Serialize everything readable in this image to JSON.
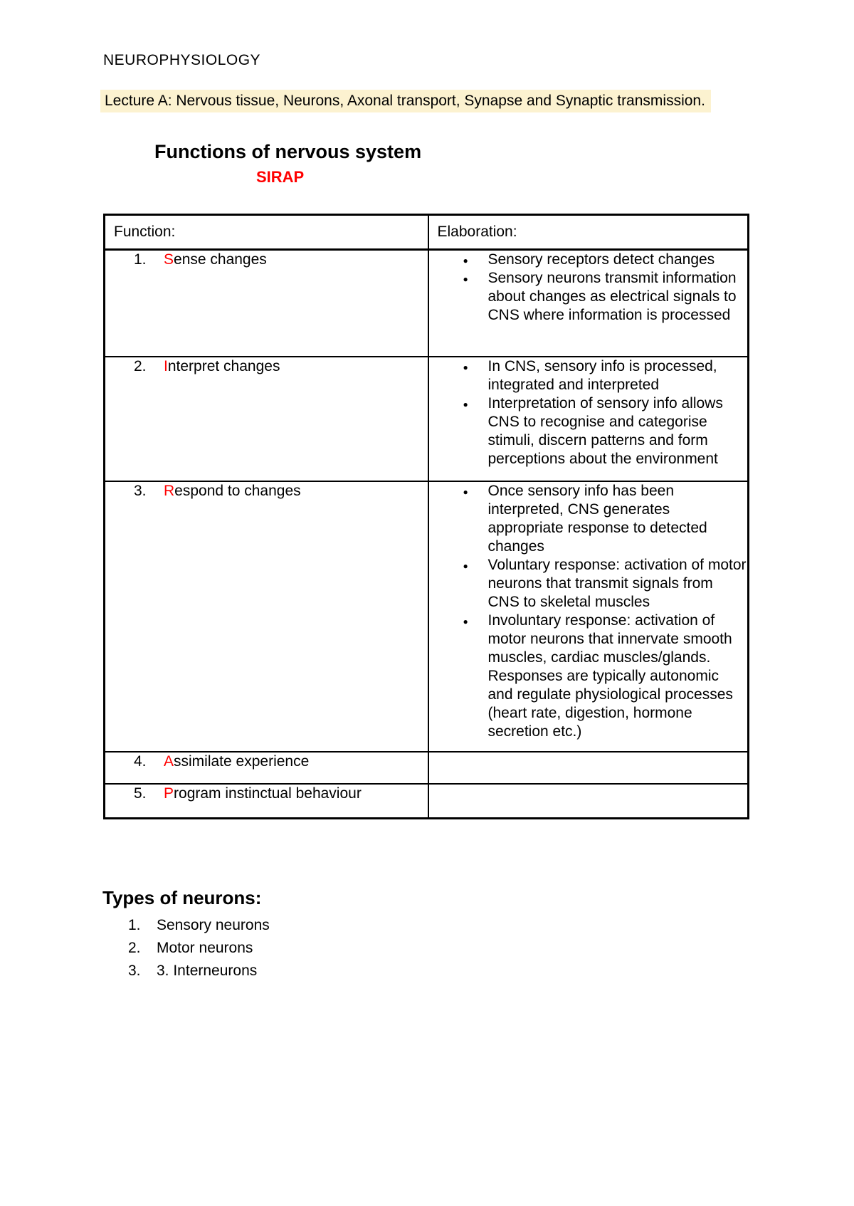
{
  "doc": {
    "title": "NEUROPHYSIOLOGY",
    "lecture_banner": "Lecture A: Nervous tissue, Neurons, Axonal transport, Synapse and Synaptic transmission.",
    "section_heading": "Functions of nervous system",
    "mnemonic": "SIRAP"
  },
  "functions_table": {
    "col_headers": [
      "Function:",
      "Elaboration:"
    ],
    "rows": [
      {
        "num": "1.",
        "red": "S",
        "rest": "ense changes",
        "bullets": [
          "Sensory receptors detect changes",
          "Sensory neurons transmit information about changes as electrical signals to CNS where information is processed"
        ]
      },
      {
        "num": "2.",
        "red": "I",
        "rest": "nterpret changes",
        "bullets": [
          "In CNS, sensory info is processed, integrated and interpreted",
          "Interpretation of sensory info allows CNS to recognise and categorise stimuli, discern patterns and form perceptions about the environment"
        ]
      },
      {
        "num": "3.",
        "red": "R",
        "rest": "espond to changes",
        "bullets": [
          "Once sensory info has been interpreted, CNS generates appropriate response to detected changes",
          "Voluntary response: activation of motor neurons that transmit signals from CNS to skeletal muscles",
          "Involuntary response: activation of motor neurons that innervate smooth muscles, cardiac muscles/glands. Responses are typically autonomic and regulate physiological processes (heart rate, digestion, hormone secretion etc.)"
        ]
      },
      {
        "num": "4.",
        "red": "A",
        "rest": "ssimilate experience",
        "bullets": []
      },
      {
        "num": "5.",
        "red": "P",
        "rest": "rogram instinctual behaviour",
        "bullets": []
      }
    ]
  },
  "types_of_neurons": {
    "heading": "Types of neurons:",
    "items": [
      {
        "num": "1.",
        "text": "Sensory neurons"
      },
      {
        "num": "2.",
        "text": "Motor neurons"
      },
      {
        "num": "3.",
        "text": "3. Interneurons"
      }
    ]
  },
  "icons": {
    "bullet": "●"
  },
  "colors": {
    "highlight": "#fcf2d0",
    "accent_red": "#ff0000",
    "border": "#000000"
  }
}
